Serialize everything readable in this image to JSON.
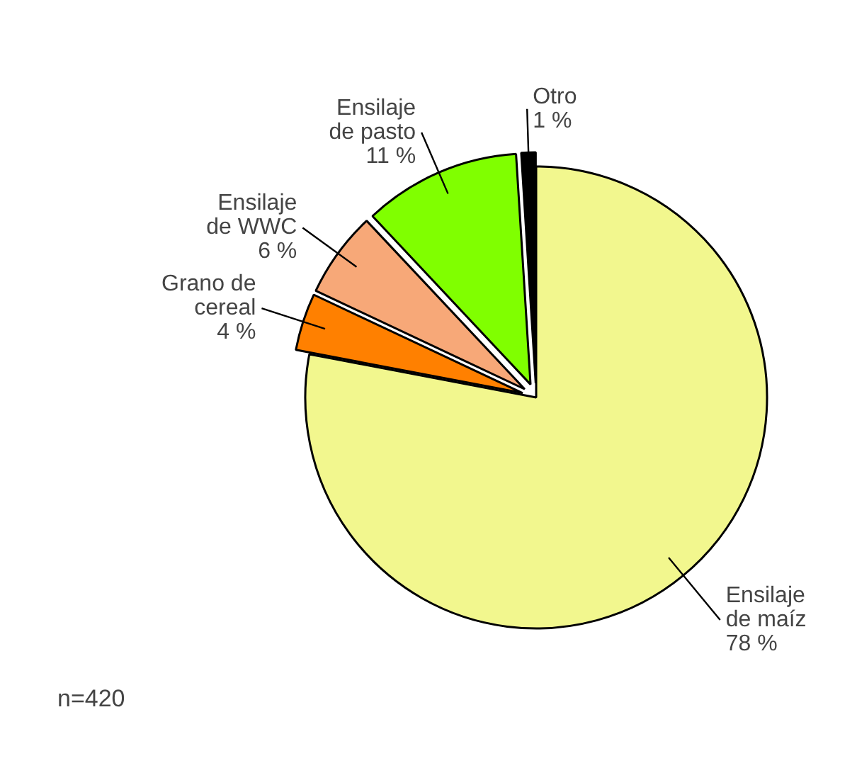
{
  "chart_data": {
    "type": "pie",
    "categories": [
      "Ensilaje\nde maíz",
      "Grano de\ncereal",
      "Ensilaje\nde WWC",
      "Ensilaje\nde pasto",
      "Otro"
    ],
    "values": [
      78,
      4,
      6,
      11,
      1
    ],
    "value_labels": [
      "78 %",
      "4 %",
      "6 %",
      "11 %",
      "1 %"
    ],
    "colors": [
      "#f2f78e",
      "#ff8000",
      "#f7a878",
      "#80ff00",
      "#000000"
    ],
    "annotations": [
      "n=420"
    ]
  }
}
